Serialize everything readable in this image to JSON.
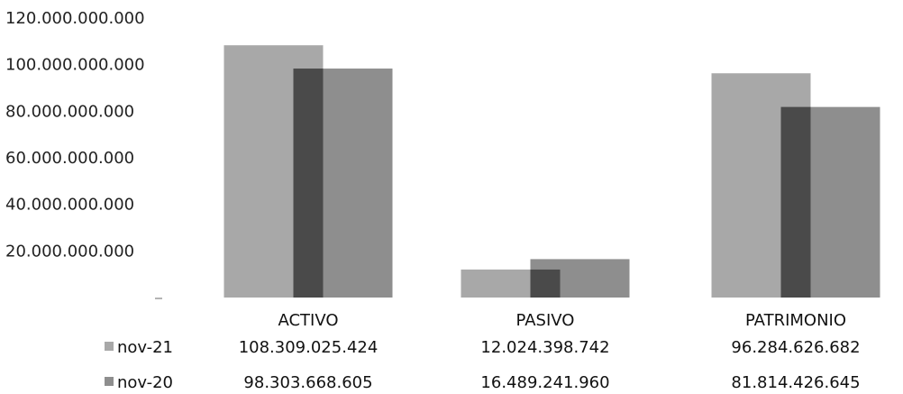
{
  "chart_data": {
    "type": "bar",
    "categories": [
      "ACTIVO",
      "PASIVO",
      "PATRIMONIO"
    ],
    "series": [
      {
        "name": "nov-21",
        "values": [
          108309025424,
          12024398742,
          96284626682
        ],
        "labels": [
          "108.309.025.424",
          "12.024.398.742",
          "96.284.626.682"
        ]
      },
      {
        "name": "nov-20",
        "values": [
          98303668605,
          16489241960,
          81814426645
        ],
        "labels": [
          "98.303.668.605",
          "16.489.241.960",
          "81.814.426.645"
        ]
      }
    ],
    "ylim": [
      0,
      120000000000
    ],
    "yticks": [
      120000000000,
      100000000000,
      80000000000,
      60000000000,
      40000000000,
      20000000000
    ],
    "ytick_labels": [
      "120.000.000.000",
      "100.000.000.000",
      "80.000.000.000",
      "60.000.000.000",
      "40.000.000.000",
      "20.000.000.000"
    ],
    "grid": false,
    "legend": "data-table",
    "colors": {
      "nov-21": "#a8a8a8",
      "nov-20": "#8e8e8e",
      "overlap": "#4a4a4a"
    }
  }
}
